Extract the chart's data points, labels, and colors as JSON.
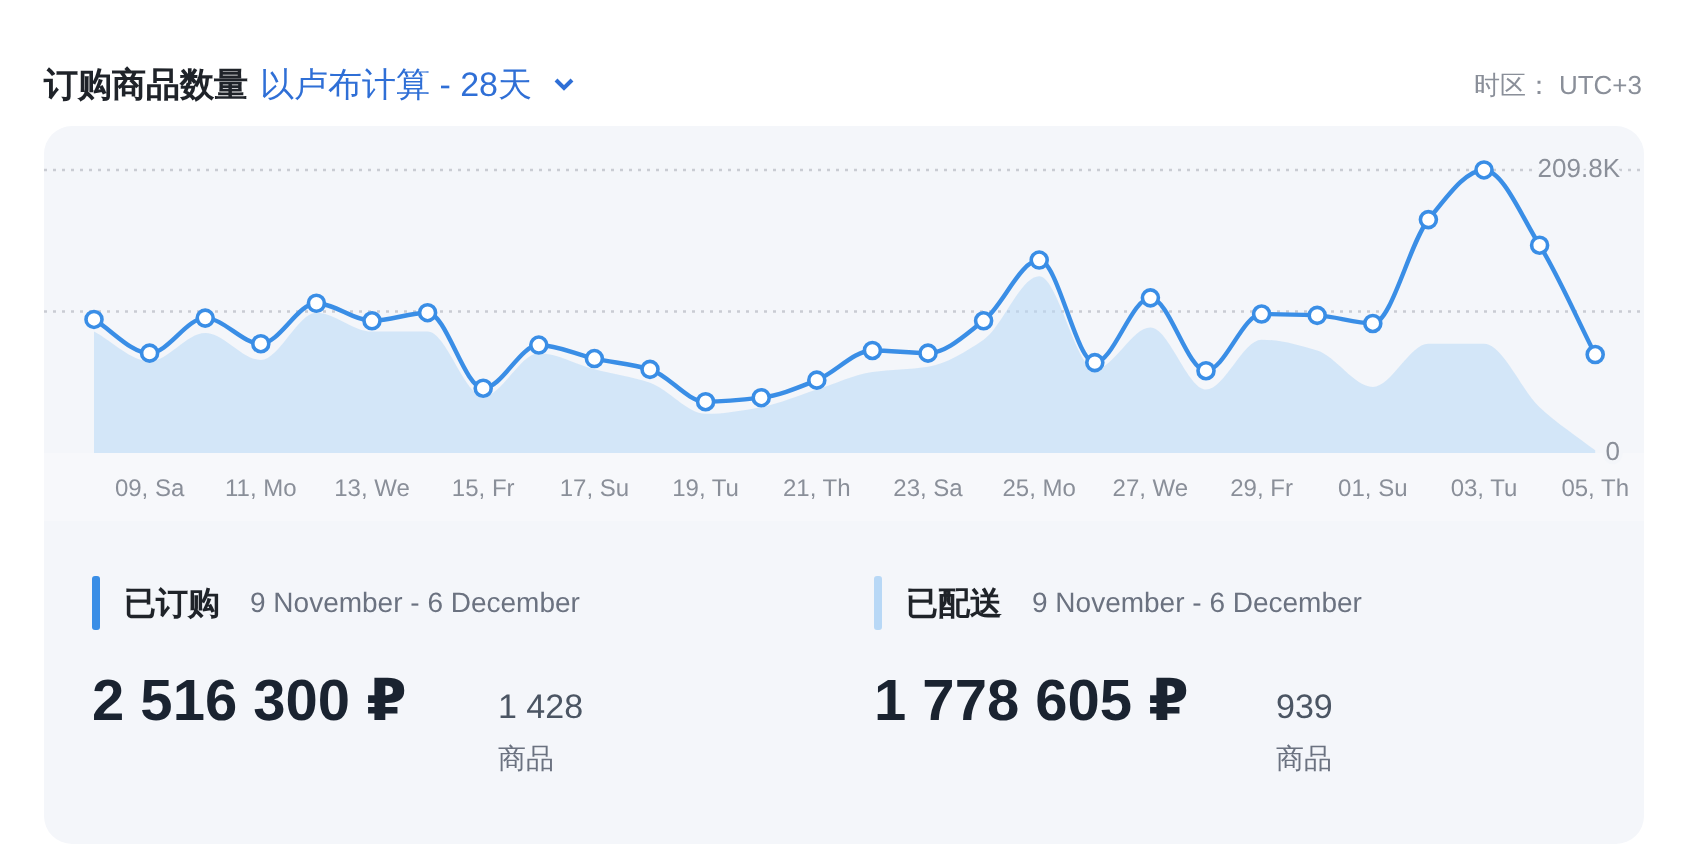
{
  "chart_data": {
    "type": "line",
    "title": "订购商品数量",
    "subtitle": "以卢布计算 - 28天",
    "annotations": [
      "时区： UTC+3",
      "9 November - 6 December",
      "2 516 300 ₽",
      "1 428",
      "商品",
      "9 November - 6 December",
      "1 778 605 ₽",
      "939",
      "商品"
    ],
    "categories": [
      null,
      "09, Sa",
      null,
      "11, Mo",
      null,
      "13, We",
      null,
      "15, Fr",
      null,
      "17, Su",
      null,
      "19, Tu",
      null,
      "21, Th",
      null,
      "23, Sa",
      null,
      "25, Mo",
      null,
      "27, We",
      null,
      "29, Fr",
      null,
      "01, Su",
      null,
      "03, Tu",
      null,
      "05, Th"
    ],
    "series": [
      {
        "name": "已订购",
        "type": "line",
        "color": "#3a8ee6",
        "marker": "circle",
        "values": [
          99,
          74,
          100,
          81,
          111,
          98,
          104,
          48,
          80,
          70,
          62,
          38,
          41,
          54,
          76,
          74,
          98,
          143,
          67,
          115,
          61,
          103,
          102,
          96,
          173,
          209.8,
          154,
          73
        ]
      },
      {
        "name": "已配送",
        "type": "area",
        "color": "#b8d8f6",
        "values": [
          90,
          68,
          89,
          69,
          104,
          90,
          90,
          42,
          74,
          62,
          52,
          29,
          34,
          47,
          60,
          64,
          84,
          131,
          62,
          93,
          47,
          84,
          76,
          49,
          81,
          81,
          34,
          2
        ]
      }
    ],
    "ylim": [
      0,
      240
    ],
    "yticks": [
      0,
      {
        "value": 104.9,
        "label": null
      },
      {
        "value": 209.8,
        "label": "209.8K"
      }
    ],
    "grid": "y",
    "legend": "bottom"
  }
}
